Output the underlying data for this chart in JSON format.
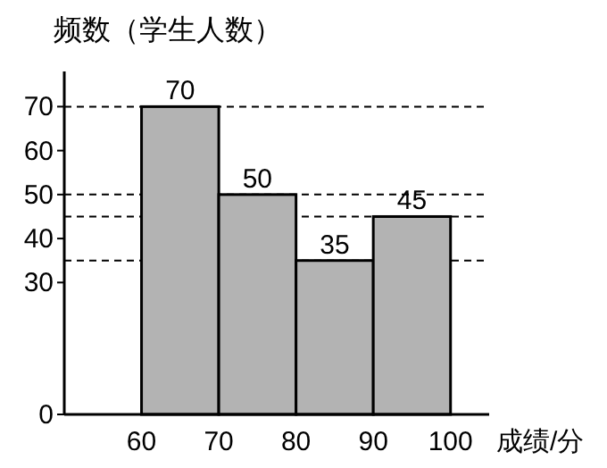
{
  "chart_data": {
    "type": "histogram",
    "ylabel": "频数（学生人数）",
    "xlabel": "成绩/分",
    "bins": [
      60,
      70,
      80,
      90,
      100
    ],
    "values": [
      70,
      50,
      35,
      45
    ],
    "color": "#b3b3b3",
    "xlim": [
      50,
      105
    ],
    "xticks": [
      60,
      70,
      80,
      90,
      100
    ],
    "ylim": [
      0,
      78
    ],
    "yticks": [
      0,
      30,
      40,
      50,
      60,
      70
    ],
    "data_labels": true,
    "grid": false,
    "ref_lines": [
      {
        "axis": "y",
        "value": 70,
        "line_style": "dashed"
      },
      {
        "axis": "y",
        "value": 50,
        "line_style": "dashed"
      },
      {
        "axis": "y",
        "value": 45,
        "line_style": "dashed"
      },
      {
        "axis": "y",
        "value": 35,
        "line_style": "dashed"
      }
    ]
  }
}
